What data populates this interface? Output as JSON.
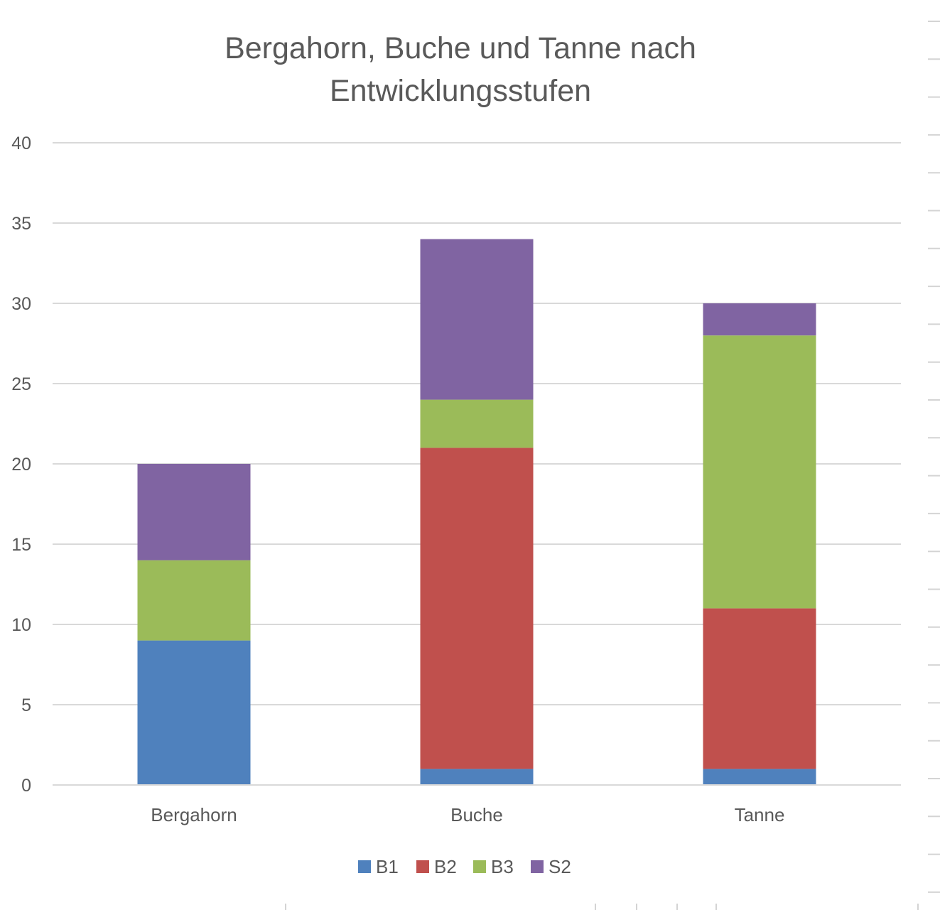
{
  "chart_data": {
    "type": "bar",
    "stacked": true,
    "title": [
      "Bergahorn, Buche und Tanne nach",
      "Entwicklungsstufen"
    ],
    "xlabel": "",
    "ylabel": "",
    "categories": [
      "Bergahorn",
      "Buche",
      "Tanne"
    ],
    "series": [
      {
        "name": "B1",
        "color": "#4f81bd",
        "values": [
          9,
          1,
          1
        ]
      },
      {
        "name": "B2",
        "color": "#c0504d",
        "values": [
          0,
          20,
          10
        ]
      },
      {
        "name": "B3",
        "color": "#9bbb59",
        "values": [
          5,
          3,
          17
        ]
      },
      {
        "name": "S2",
        "color": "#8064a2",
        "values": [
          6,
          10,
          2
        ]
      }
    ],
    "ylim": [
      0,
      40
    ],
    "yticks": [
      "0",
      "5",
      "10",
      "15",
      "20",
      "25",
      "30",
      "35",
      "40"
    ],
    "grid": true,
    "legend": "bottom",
    "gridline_color": "#d9d9d9"
  }
}
